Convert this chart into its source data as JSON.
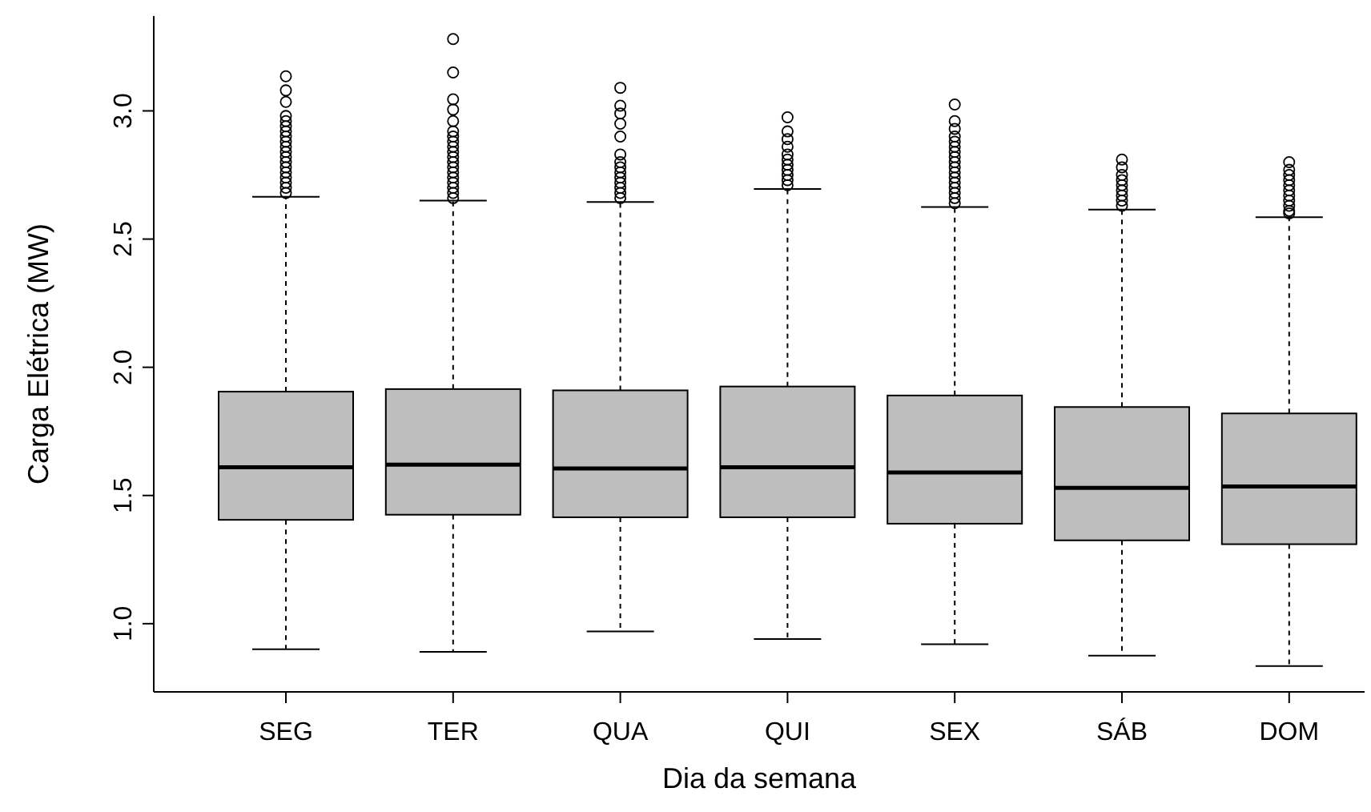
{
  "chart_data": {
    "type": "box",
    "xlabel": "Dia da semana",
    "ylabel": "Carga Elétrica (MW)",
    "categories": [
      "SEG",
      "TER",
      "QUA",
      "QUI",
      "SEX",
      "SÁB",
      "DOM"
    ],
    "color": "#bebebe",
    "ylim": [
      0.734,
      3.37
    ],
    "yticks": [
      {
        "value": 1,
        "label": "1.0"
      },
      {
        "value": 1.5,
        "label": "1.5"
      },
      {
        "value": 2,
        "label": "2.0"
      },
      {
        "value": 2.5,
        "label": "2.5"
      },
      {
        "value": 3,
        "label": "3.0"
      }
    ],
    "grid": false,
    "boxes": [
      {
        "low": 0.9,
        "q1": 1.405,
        "median": 1.61,
        "q3": 1.905,
        "high": 2.665,
        "outliers": [
          3.135,
          3.08,
          3.035,
          2.98,
          2.96,
          2.94,
          2.92,
          2.9,
          2.88,
          2.86,
          2.84,
          2.82,
          2.8,
          2.78,
          2.76,
          2.74,
          2.72,
          2.7,
          2.68
        ]
      },
      {
        "low": 0.89,
        "q1": 1.425,
        "median": 1.62,
        "q3": 1.915,
        "high": 2.65,
        "outliers": [
          3.28,
          3.15,
          3.045,
          3.005,
          2.96,
          2.92,
          2.9,
          2.88,
          2.86,
          2.84,
          2.82,
          2.8,
          2.78,
          2.76,
          2.74,
          2.72,
          2.7,
          2.68,
          2.66
        ]
      },
      {
        "low": 0.97,
        "q1": 1.415,
        "median": 1.605,
        "q3": 1.91,
        "high": 2.645,
        "outliers": [
          3.09,
          3.02,
          2.99,
          2.95,
          2.9,
          2.83,
          2.8,
          2.78,
          2.76,
          2.74,
          2.72,
          2.7,
          2.68,
          2.66
        ]
      },
      {
        "low": 0.94,
        "q1": 1.415,
        "median": 1.61,
        "q3": 1.925,
        "high": 2.695,
        "outliers": [
          2.975,
          2.92,
          2.89,
          2.86,
          2.83,
          2.81,
          2.79,
          2.77,
          2.75,
          2.73,
          2.71
        ]
      },
      {
        "low": 0.92,
        "q1": 1.39,
        "median": 1.59,
        "q3": 1.89,
        "high": 2.625,
        "outliers": [
          3.025,
          2.96,
          2.93,
          2.9,
          2.88,
          2.86,
          2.84,
          2.82,
          2.8,
          2.78,
          2.76,
          2.74,
          2.72,
          2.7,
          2.68,
          2.66,
          2.64
        ]
      },
      {
        "low": 0.875,
        "q1": 1.325,
        "median": 1.53,
        "q3": 1.845,
        "high": 2.615,
        "outliers": [
          2.81,
          2.78,
          2.75,
          2.73,
          2.71,
          2.69,
          2.67,
          2.65,
          2.63
        ]
      },
      {
        "low": 0.835,
        "q1": 1.31,
        "median": 1.535,
        "q3": 1.82,
        "high": 2.585,
        "outliers": [
          2.8,
          2.77,
          2.75,
          2.73,
          2.71,
          2.69,
          2.67,
          2.65,
          2.63,
          2.61,
          2.6
        ]
      }
    ]
  }
}
